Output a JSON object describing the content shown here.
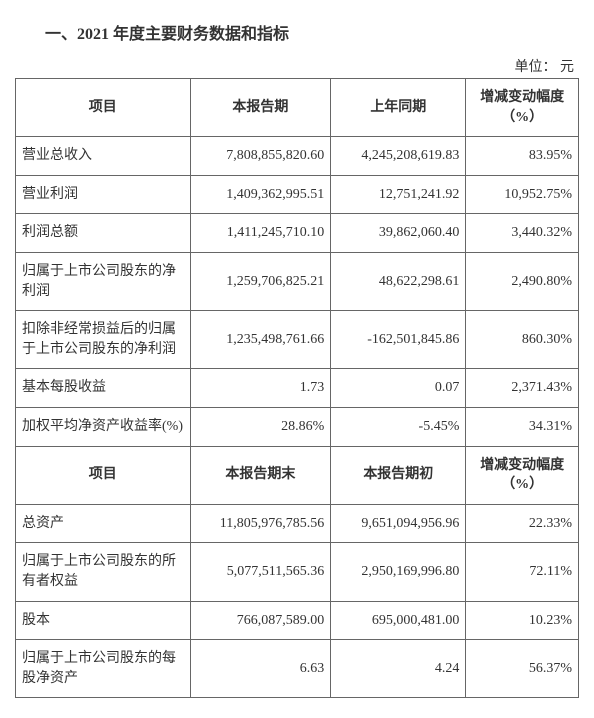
{
  "title": "一、2021 年度主要财务数据和指标",
  "unit": "单位：  元",
  "headers1": {
    "col1": "项目",
    "col2": "本报告期",
    "col3": "上年同期",
    "col4": "增减变动幅度（%）"
  },
  "rows1": [
    {
      "label": "营业总收入",
      "v1": "7,808,855,820.60",
      "v2": "4,245,208,619.83",
      "v3": "83.95%"
    },
    {
      "label": "营业利润",
      "v1": "1,409,362,995.51",
      "v2": "12,751,241.92",
      "v3": "10,952.75%"
    },
    {
      "label": "利润总额",
      "v1": "1,411,245,710.10",
      "v2": "39,862,060.40",
      "v3": "3,440.32%"
    },
    {
      "label": "归属于上市公司股东的净利润",
      "v1": "1,259,706,825.21",
      "v2": "48,622,298.61",
      "v3": "2,490.80%"
    },
    {
      "label": "扣除非经常损益后的归属于上市公司股东的净利润",
      "v1": "1,235,498,761.66",
      "v2": "-162,501,845.86",
      "v3": "860.30%"
    },
    {
      "label": "基本每股收益",
      "v1": "1.73",
      "v2": "0.07",
      "v3": "2,371.43%"
    },
    {
      "label": "加权平均净资产收益率(%)",
      "v1": "28.86%",
      "v2": "-5.45%",
      "v3": "34.31%"
    }
  ],
  "headers2": {
    "col1": "项目",
    "col2": "本报告期末",
    "col3": "本报告期初",
    "col4": "增减变动幅度（%）"
  },
  "rows2": [
    {
      "label": "总资产",
      "v1": "11,805,976,785.56",
      "v2": "9,651,094,956.96",
      "v3": "22.33%"
    },
    {
      "label": "归属于上市公司股东的所有者权益",
      "v1": "5,077,511,565.36",
      "v2": "2,950,169,996.80",
      "v3": "72.11%"
    },
    {
      "label": "股本",
      "v1": "766,087,589.00",
      "v2": "695,000,481.00",
      "v3": "10.23%"
    },
    {
      "label": "归属于上市公司股东的每股净资产",
      "v1": "6.63",
      "v2": "4.24",
      "v3": "56.37%"
    }
  ]
}
